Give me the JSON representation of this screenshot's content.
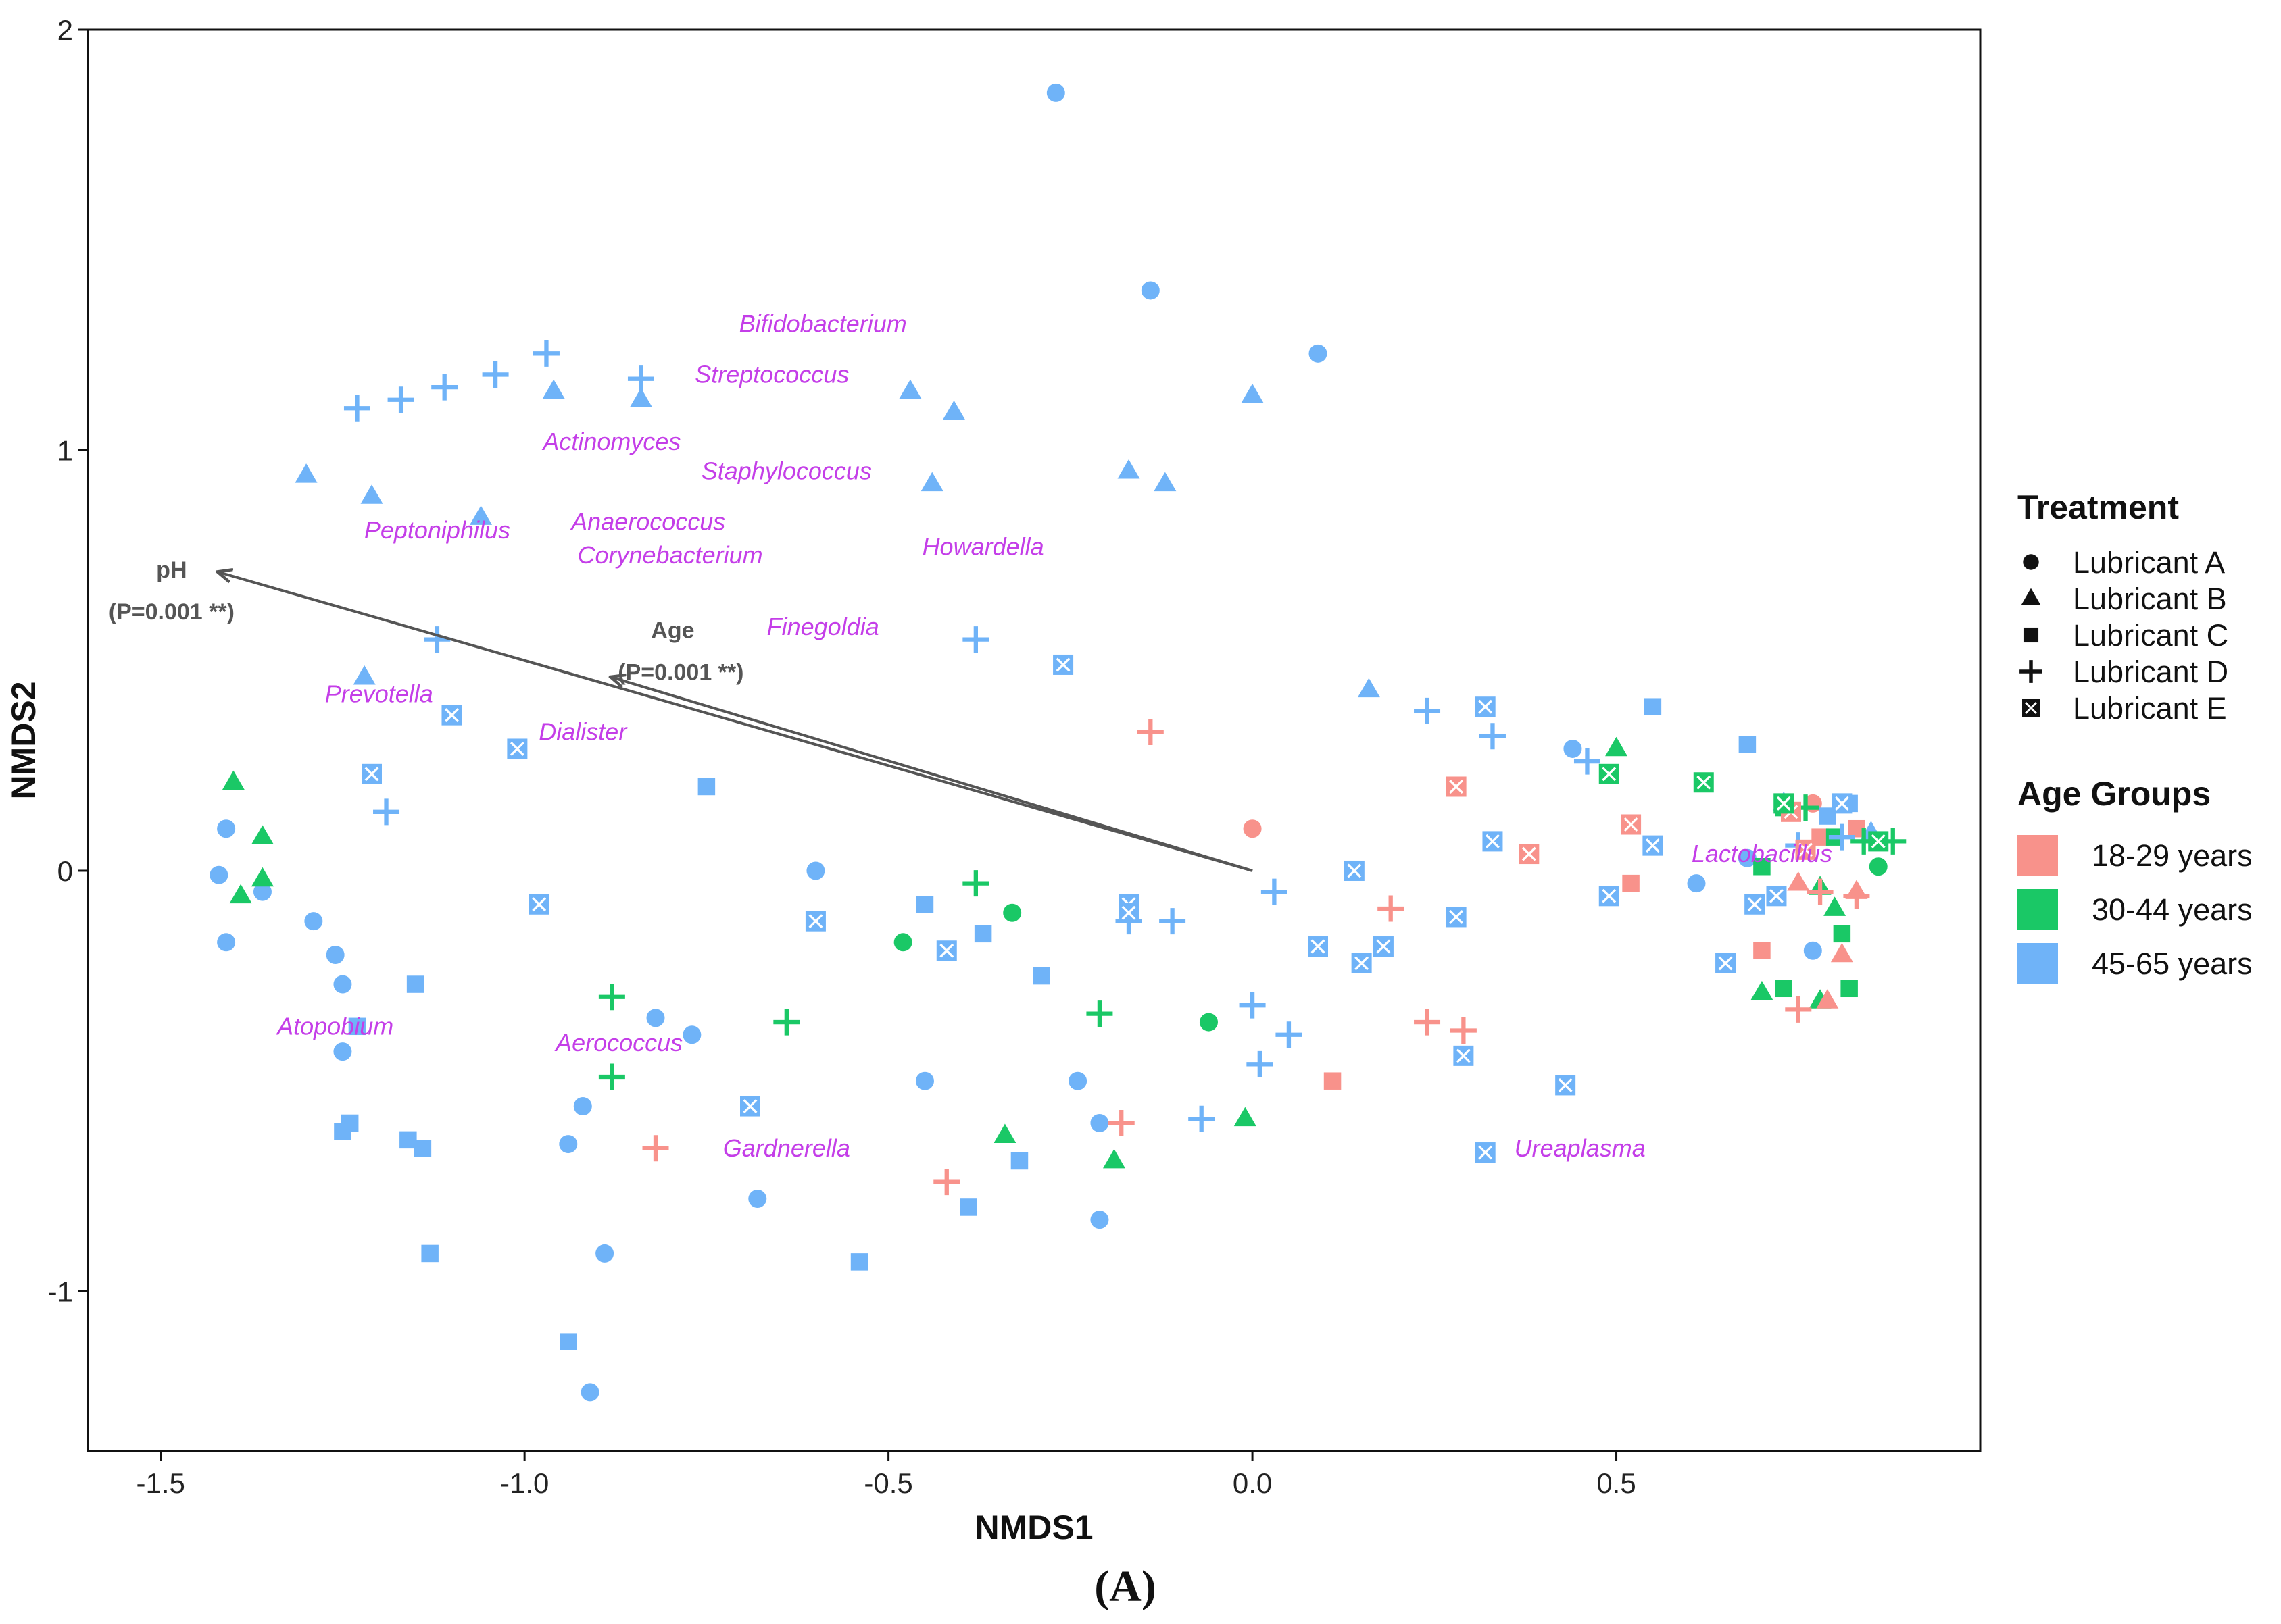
{
  "chart_data": {
    "type": "scatter",
    "xlabel": "NMDS1",
    "ylabel": "NMDS2",
    "xlim": [
      -1.6,
      1.0
    ],
    "ylim": [
      -1.38,
      2.0
    ],
    "xticks": [
      -1.5,
      -1.0,
      -0.5,
      0.0,
      0.5
    ],
    "yticks": [
      -1,
      0,
      1,
      2
    ],
    "xtick_labels": [
      "-1.5",
      "-1.0",
      "-0.5",
      "0.0",
      "0.5"
    ],
    "ytick_labels": [
      "-1",
      "0",
      "1",
      "2"
    ],
    "grid": false,
    "legend_placement": "right",
    "caption": "(A)",
    "treatment_legend": {
      "title": "Treatment",
      "items": [
        {
          "label": "Lubricant A",
          "shape": "circle"
        },
        {
          "label": "Lubricant B",
          "shape": "triangle"
        },
        {
          "label": "Lubricant C",
          "shape": "square"
        },
        {
          "label": "Lubricant D",
          "shape": "plus"
        },
        {
          "label": "Lubricant E",
          "shape": "boxcross"
        }
      ]
    },
    "age_legend": {
      "title": "Age Groups",
      "items": [
        {
          "label": "18-29 years",
          "color": "#f8928b"
        },
        {
          "label": "30-44 years",
          "color": "#1ac866"
        },
        {
          "label": "45-65 years",
          "color": "#6fb3f8"
        }
      ]
    },
    "colors": {
      "18-29 years": "#f8928b",
      "30-44 years": "#1ac866",
      "45-65 years": "#6fb3f8",
      "genus": "#c43ee8",
      "arrow": "#555555"
    },
    "arrows": [
      {
        "name": "pH",
        "p_label": "(P=0.001 **)",
        "x": -1.42,
        "y": 0.71
      },
      {
        "name": "Age",
        "p_label": "(P=0.001 **)",
        "x": -0.88,
        "y": 0.46
      }
    ],
    "genera": [
      {
        "name": "Bifidobacterium",
        "x": -0.59,
        "y": 1.3
      },
      {
        "name": "Streptococcus",
        "x": -0.66,
        "y": 1.18
      },
      {
        "name": "Actinomyces",
        "x": -0.88,
        "y": 1.02
      },
      {
        "name": "Staphylococcus",
        "x": -0.64,
        "y": 0.95
      },
      {
        "name": "Peptoniphilus",
        "x": -1.12,
        "y": 0.81
      },
      {
        "name": "Anaerococcus",
        "x": -0.83,
        "y": 0.83
      },
      {
        "name": "Corynebacterium",
        "x": -0.8,
        "y": 0.75
      },
      {
        "name": "Howardella",
        "x": -0.37,
        "y": 0.77
      },
      {
        "name": "Finegoldia",
        "x": -0.59,
        "y": 0.58
      },
      {
        "name": "Prevotella",
        "x": -1.2,
        "y": 0.42
      },
      {
        "name": "Dialister",
        "x": -0.92,
        "y": 0.33
      },
      {
        "name": "Lactobacillus",
        "x": 0.7,
        "y": 0.04
      },
      {
        "name": "Atopobium",
        "x": -1.26,
        "y": -0.37
      },
      {
        "name": "Aerococcus",
        "x": -0.87,
        "y": -0.41
      },
      {
        "name": "Gardnerella",
        "x": -0.64,
        "y": -0.66
      },
      {
        "name": "Ureaplasma",
        "x": 0.45,
        "y": -0.66
      }
    ],
    "series": [
      {
        "treatment": "Lubricant A",
        "age": "45-65 years",
        "points": [
          [
            -0.27,
            1.85
          ],
          [
            -0.14,
            1.38
          ],
          [
            0.09,
            1.23
          ],
          [
            -1.41,
            0.1
          ],
          [
            -1.42,
            -0.01
          ],
          [
            -1.36,
            -0.05
          ],
          [
            -1.41,
            -0.17
          ],
          [
            -1.29,
            -0.12
          ],
          [
            -1.26,
            -0.2
          ],
          [
            -1.25,
            -0.27
          ],
          [
            -1.25,
            -0.43
          ],
          [
            -0.6,
            0.0
          ],
          [
            -0.82,
            -0.35
          ],
          [
            -0.77,
            -0.39
          ],
          [
            -0.92,
            -0.56
          ],
          [
            -0.94,
            -0.65
          ],
          [
            -0.89,
            -0.91
          ],
          [
            -0.91,
            -1.24
          ],
          [
            -0.68,
            -0.78
          ],
          [
            -0.45,
            -0.5
          ],
          [
            -0.24,
            -0.5
          ],
          [
            -0.21,
            -0.6
          ],
          [
            -0.21,
            -0.83
          ],
          [
            0.44,
            0.29
          ],
          [
            0.61,
            -0.03
          ],
          [
            0.68,
            0.03
          ],
          [
            0.77,
            -0.19
          ]
        ]
      },
      {
        "treatment": "Lubricant A",
        "age": "18-29 years",
        "points": [
          [
            0.0,
            0.1
          ],
          [
            0.77,
            0.16
          ]
        ]
      },
      {
        "treatment": "Lubricant A",
        "age": "30-44 years",
        "points": [
          [
            -0.48,
            -0.17
          ],
          [
            -0.33,
            -0.1
          ],
          [
            -0.06,
            -0.36
          ],
          [
            0.86,
            0.01
          ]
        ]
      },
      {
        "treatment": "Lubricant B",
        "age": "45-65 years",
        "points": [
          [
            -1.3,
            0.94
          ],
          [
            -1.21,
            0.89
          ],
          [
            -1.06,
            0.84
          ],
          [
            -0.96,
            1.14
          ],
          [
            -0.84,
            1.12
          ],
          [
            -0.47,
            1.14
          ],
          [
            -0.41,
            1.09
          ],
          [
            -0.44,
            0.92
          ],
          [
            -0.17,
            0.95
          ],
          [
            -0.12,
            0.92
          ],
          [
            0.0,
            1.13
          ],
          [
            -1.22,
            0.46
          ],
          [
            0.16,
            0.43
          ],
          [
            0.73,
            0.16
          ],
          [
            0.85,
            0.09
          ]
        ]
      },
      {
        "treatment": "Lubricant B",
        "age": "30-44 years",
        "points": [
          [
            -1.4,
            0.21
          ],
          [
            -1.36,
            0.08
          ],
          [
            -1.36,
            -0.02
          ],
          [
            -1.39,
            -0.06
          ],
          [
            -0.34,
            -0.63
          ],
          [
            -0.19,
            -0.69
          ],
          [
            -0.01,
            -0.59
          ],
          [
            0.5,
            0.29
          ],
          [
            0.7,
            -0.29
          ],
          [
            0.78,
            -0.31
          ],
          [
            0.8,
            -0.09
          ],
          [
            0.78,
            -0.04
          ]
        ]
      },
      {
        "treatment": "Lubricant B",
        "age": "18-29 years",
        "points": [
          [
            0.81,
            -0.2
          ],
          [
            0.79,
            -0.31
          ],
          [
            0.83,
            -0.05
          ],
          [
            0.75,
            -0.03
          ]
        ]
      },
      {
        "treatment": "Lubricant C",
        "age": "45-65 years",
        "points": [
          [
            -0.75,
            0.2
          ],
          [
            -0.45,
            -0.08
          ],
          [
            -0.37,
            -0.15
          ],
          [
            -0.29,
            -0.25
          ],
          [
            -0.32,
            -0.69
          ],
          [
            -0.39,
            -0.8
          ],
          [
            -0.54,
            -0.93
          ],
          [
            -1.15,
            -0.27
          ],
          [
            -1.24,
            -0.6
          ],
          [
            -1.25,
            -0.62
          ],
          [
            -1.16,
            -0.64
          ],
          [
            -1.14,
            -0.66
          ],
          [
            -1.13,
            -0.91
          ],
          [
            -1.23,
            -0.37
          ],
          [
            -0.94,
            -1.12
          ],
          [
            0.55,
            0.39
          ],
          [
            0.68,
            0.3
          ],
          [
            0.79,
            0.13
          ],
          [
            0.82,
            0.16
          ]
        ]
      },
      {
        "treatment": "Lubricant C",
        "age": "18-29 years",
        "points": [
          [
            0.11,
            -0.5
          ],
          [
            0.52,
            -0.03
          ],
          [
            0.7,
            -0.19
          ],
          [
            0.78,
            0.08
          ],
          [
            0.83,
            0.1
          ]
        ]
      },
      {
        "treatment": "Lubricant C",
        "age": "30-44 years",
        "points": [
          [
            0.7,
            0.01
          ],
          [
            0.73,
            -0.28
          ],
          [
            0.81,
            -0.15
          ],
          [
            0.82,
            -0.28
          ],
          [
            0.73,
            0.15
          ],
          [
            0.8,
            0.08
          ]
        ]
      },
      {
        "treatment": "Lubricant D",
        "age": "45-65 years",
        "points": [
          [
            -1.23,
            1.1
          ],
          [
            -1.17,
            1.12
          ],
          [
            -1.11,
            1.15
          ],
          [
            -1.04,
            1.18
          ],
          [
            -0.97,
            1.23
          ],
          [
            -0.84,
            1.17
          ],
          [
            -1.12,
            0.55
          ],
          [
            -1.19,
            0.14
          ],
          [
            -0.38,
            0.55
          ],
          [
            -0.17,
            -0.12
          ],
          [
            -0.11,
            -0.12
          ],
          [
            0.03,
            -0.05
          ],
          [
            0.0,
            -0.32
          ],
          [
            0.05,
            -0.39
          ],
          [
            0.01,
            -0.46
          ],
          [
            -0.07,
            -0.59
          ],
          [
            0.24,
            0.38
          ],
          [
            0.33,
            0.32
          ],
          [
            0.46,
            0.26
          ],
          [
            0.75,
            0.06
          ],
          [
            0.81,
            0.08
          ]
        ]
      },
      {
        "treatment": "Lubricant D",
        "age": "30-44 years",
        "points": [
          [
            -0.38,
            -0.03
          ],
          [
            -0.64,
            -0.36
          ],
          [
            -0.88,
            -0.3
          ],
          [
            -0.88,
            -0.49
          ],
          [
            -0.21,
            -0.34
          ],
          [
            0.76,
            0.15
          ],
          [
            0.84,
            0.07
          ],
          [
            0.88,
            0.07
          ]
        ]
      },
      {
        "treatment": "Lubricant D",
        "age": "18-29 years",
        "points": [
          [
            -0.14,
            0.33
          ],
          [
            0.19,
            -0.09
          ],
          [
            0.24,
            -0.36
          ],
          [
            0.29,
            -0.38
          ],
          [
            -0.82,
            -0.66
          ],
          [
            -0.42,
            -0.74
          ],
          [
            -0.18,
            -0.6
          ],
          [
            0.75,
            -0.33
          ],
          [
            0.78,
            -0.05
          ],
          [
            0.83,
            -0.06
          ]
        ]
      },
      {
        "treatment": "Lubricant E",
        "age": "45-65 years",
        "points": [
          [
            -0.26,
            0.49
          ],
          [
            -1.1,
            0.37
          ],
          [
            -1.01,
            0.29
          ],
          [
            -1.21,
            0.23
          ],
          [
            -0.98,
            -0.08
          ],
          [
            -0.6,
            -0.12
          ],
          [
            -0.42,
            -0.19
          ],
          [
            -0.17,
            -0.08
          ],
          [
            -0.17,
            -0.1
          ],
          [
            0.14,
            0.0
          ],
          [
            0.09,
            -0.18
          ],
          [
            0.15,
            -0.22
          ],
          [
            0.18,
            -0.18
          ],
          [
            0.28,
            -0.11
          ],
          [
            0.32,
            0.39
          ],
          [
            0.33,
            0.07
          ],
          [
            0.29,
            -0.44
          ],
          [
            0.32,
            -0.67
          ],
          [
            0.43,
            -0.51
          ],
          [
            0.49,
            -0.06
          ],
          [
            0.55,
            0.06
          ],
          [
            0.65,
            -0.22
          ],
          [
            0.69,
            -0.08
          ],
          [
            0.72,
            -0.06
          ],
          [
            -0.69,
            -0.56
          ],
          [
            0.81,
            0.16
          ]
        ]
      },
      {
        "treatment": "Lubricant E",
        "age": "18-29 years",
        "points": [
          [
            0.28,
            0.2
          ],
          [
            0.38,
            0.04
          ],
          [
            0.52,
            0.11
          ],
          [
            0.74,
            0.14
          ],
          [
            0.76,
            0.05
          ]
        ]
      },
      {
        "treatment": "Lubricant E",
        "age": "30-44 years",
        "points": [
          [
            0.49,
            0.23
          ],
          [
            0.62,
            0.21
          ],
          [
            0.73,
            0.16
          ],
          [
            0.86,
            0.07
          ]
        ]
      }
    ]
  }
}
